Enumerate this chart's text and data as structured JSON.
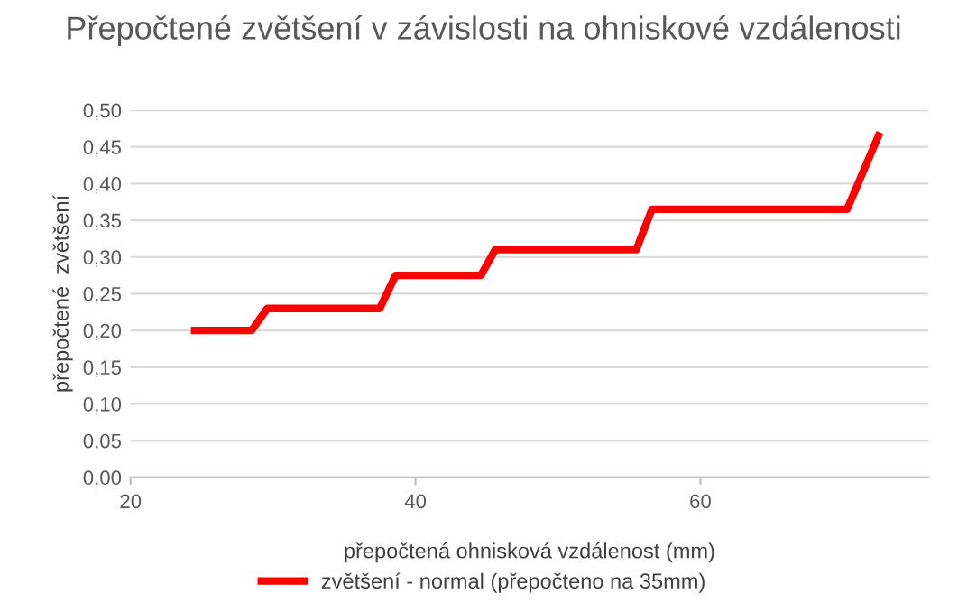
{
  "chart_data": {
    "type": "line",
    "title": "Přepočtené zvětšení v závislosti na ohniskové vzdálenosti",
    "xlabel": "přepočtená ohnisková vzdálenost (mm)",
    "ylabel": "přepočtené  zvětšení",
    "series": [
      {
        "name": "zvětšení - normal (přepočteno na 35mm)",
        "color": "#ff0000",
        "x": [
          24.5,
          28.5,
          29.6,
          37.5,
          38.6,
          44.6,
          45.6,
          55.5,
          56.6,
          70.3,
          72.5
        ],
        "values": [
          0.2,
          0.2,
          0.23,
          0.23,
          0.275,
          0.275,
          0.31,
          0.31,
          0.365,
          0.365,
          0.465
        ]
      }
    ],
    "xlim": [
      20,
      76
    ],
    "xticks": [
      20,
      40,
      60
    ],
    "ylim": [
      0,
      0.5
    ],
    "yticks": [
      {
        "value": 0,
        "label": "0,00"
      },
      {
        "value": 0.05,
        "label": "0,05"
      },
      {
        "value": 0.1,
        "label": "0,10"
      },
      {
        "value": 0.15,
        "label": "0,15"
      },
      {
        "value": 0.2,
        "label": "0,20"
      },
      {
        "value": 0.25,
        "label": "0,25"
      },
      {
        "value": 0.3,
        "label": "0,30"
      },
      {
        "value": 0.35,
        "label": "0,35"
      },
      {
        "value": 0.4,
        "label": "0,40"
      },
      {
        "value": 0.45,
        "label": "0,45"
      },
      {
        "value": 0.5,
        "label": "0,50"
      }
    ],
    "grid": "y",
    "legend": "bottom",
    "marker": "none",
    "line_style": "solid"
  }
}
